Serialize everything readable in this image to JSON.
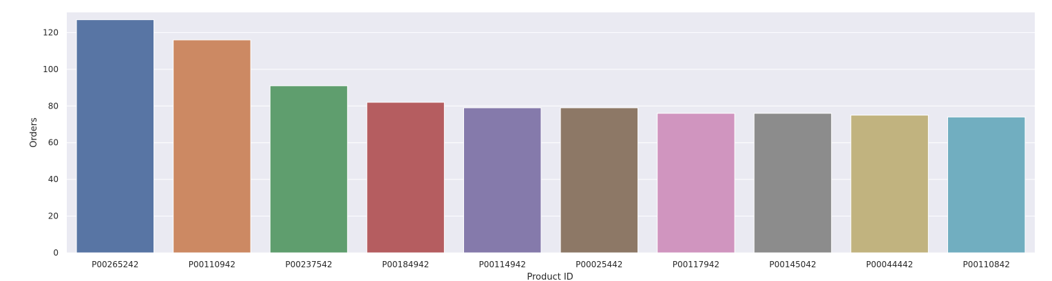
{
  "chart_data": {
    "type": "bar",
    "categories": [
      "P00265242",
      "P00110942",
      "P00237542",
      "P00184942",
      "P00114942",
      "P00025442",
      "P00117942",
      "P00145042",
      "P00044442",
      "P00110842"
    ],
    "values": [
      127,
      116,
      91,
      82,
      79,
      79,
      76,
      76,
      75,
      74
    ],
    "colors": [
      "#5875a4",
      "#cc8963",
      "#5f9e6e",
      "#b55d60",
      "#857aab",
      "#8d7866",
      "#d095bf",
      "#8c8c8c",
      "#c1b37f",
      "#71aec0"
    ],
    "xlabel": "Product  ID",
    "ylabel": "Orders",
    "ylim": [
      0,
      131
    ],
    "yticks": [
      0,
      20,
      40,
      60,
      80,
      100,
      120
    ],
    "grid": true,
    "background": "#eaeaf2",
    "gridColor": "#ffffff"
  }
}
